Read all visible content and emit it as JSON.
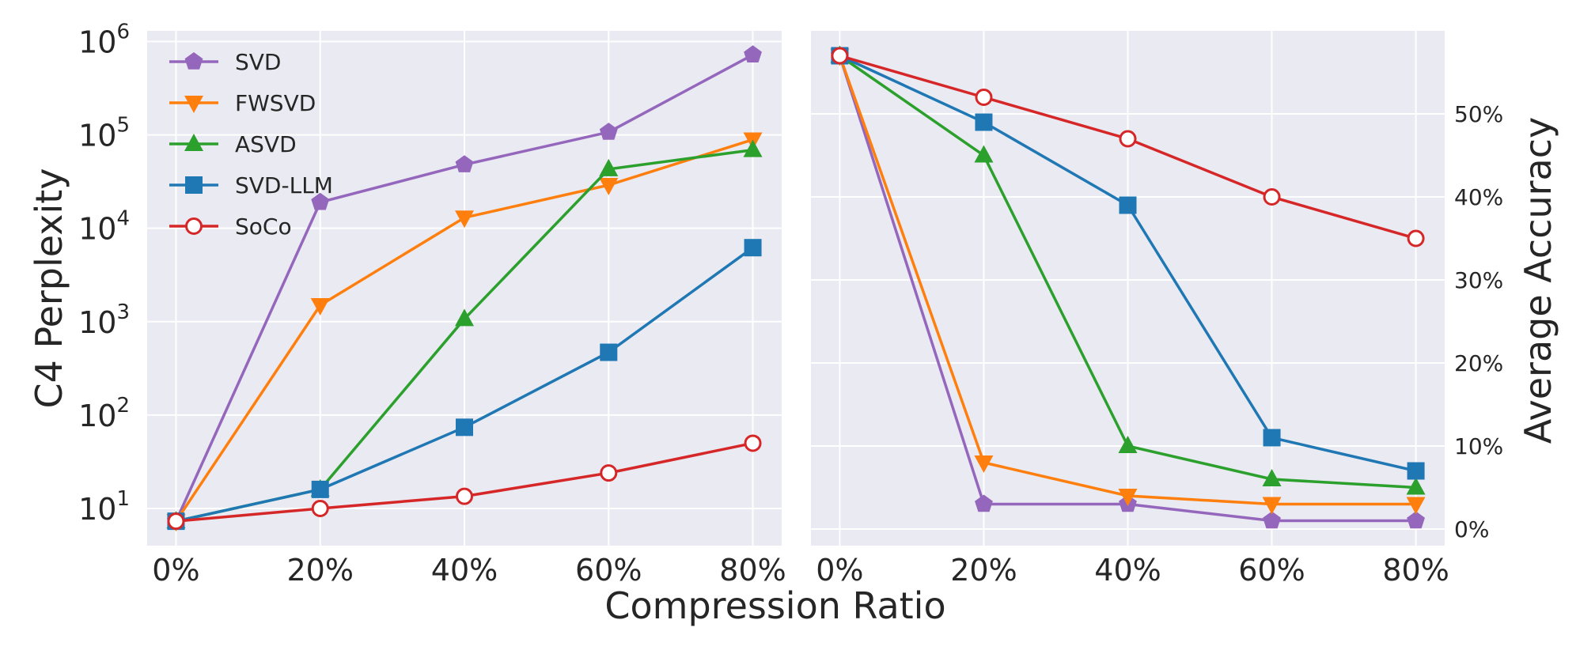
{
  "chart_data": [
    {
      "type": "line",
      "title": "",
      "xlabel": "Compression Ratio",
      "ylabel": "C4 Perplexity",
      "yscale": "log",
      "x": [
        "0%",
        "20%",
        "40%",
        "60%",
        "80%"
      ],
      "x_values": [
        0,
        20,
        40,
        60,
        80
      ],
      "xlim": [
        -4,
        84
      ],
      "ylim": [
        4,
        1300000
      ],
      "yticks": [
        10,
        100,
        1000,
        10000,
        100000,
        1000000
      ],
      "ytick_labels": [
        {
          "base": "10",
          "exp": "1"
        },
        {
          "base": "10",
          "exp": "2"
        },
        {
          "base": "10",
          "exp": "3"
        },
        {
          "base": "10",
          "exp": "4"
        },
        {
          "base": "10",
          "exp": "5"
        },
        {
          "base": "10",
          "exp": "6"
        }
      ],
      "grid": true,
      "legend_position": "top-left",
      "series": [
        {
          "name": "SVD",
          "color": "#9467bd",
          "marker": "pentagon",
          "values": [
            7.3,
            19000,
            48000,
            107000,
            720000
          ]
        },
        {
          "name": "FWSVD",
          "color": "#ff7f0e",
          "marker": "triangle-down",
          "values": [
            7.3,
            1500,
            13000,
            29000,
            89000
          ]
        },
        {
          "name": "ASVD",
          "color": "#2ca02c",
          "marker": "triangle-up",
          "values": [
            7.3,
            16,
            1070,
            43000,
            69000
          ]
        },
        {
          "name": "SVD-LLM",
          "color": "#1f77b4",
          "marker": "square",
          "values": [
            7.3,
            16,
            74,
            470,
            6200
          ]
        },
        {
          "name": "SoCo",
          "color": "#d62728",
          "marker": "open-circle",
          "values": [
            7.3,
            10,
            13.5,
            24,
            50
          ]
        }
      ]
    },
    {
      "type": "line",
      "title": "",
      "xlabel": "Compression Ratio",
      "ylabel": "Average Accuracy",
      "yscale": "linear",
      "x": [
        "0%",
        "20%",
        "40%",
        "60%",
        "80%"
      ],
      "x_values": [
        0,
        20,
        40,
        60,
        80
      ],
      "xlim": [
        -4,
        84
      ],
      "ylim": [
        -2,
        60
      ],
      "yticks": [
        0,
        10,
        20,
        30,
        40,
        50
      ],
      "ytick_labels": [
        "0%",
        "10%",
        "20%",
        "30%",
        "40%",
        "50%"
      ],
      "grid": true,
      "series": [
        {
          "name": "SVD",
          "color": "#9467bd",
          "marker": "pentagon",
          "values": [
            57,
            3,
            3,
            1,
            1
          ]
        },
        {
          "name": "FWSVD",
          "color": "#ff7f0e",
          "marker": "triangle-down",
          "values": [
            57,
            8,
            4,
            3,
            3
          ]
        },
        {
          "name": "ASVD",
          "color": "#2ca02c",
          "marker": "triangle-up",
          "values": [
            57,
            45,
            10,
            6,
            5
          ]
        },
        {
          "name": "SVD-LLM",
          "color": "#1f77b4",
          "marker": "square",
          "values": [
            57,
            49,
            39,
            11,
            7
          ]
        },
        {
          "name": "SoCo",
          "color": "#d62728",
          "marker": "open-circle",
          "values": [
            57,
            52,
            47,
            40,
            35
          ]
        }
      ]
    }
  ],
  "shared_xlabel": "Compression Ratio",
  "style": {
    "axes_bg": "#eaeaf2",
    "grid": "#ffffff",
    "text": "#262626"
  }
}
